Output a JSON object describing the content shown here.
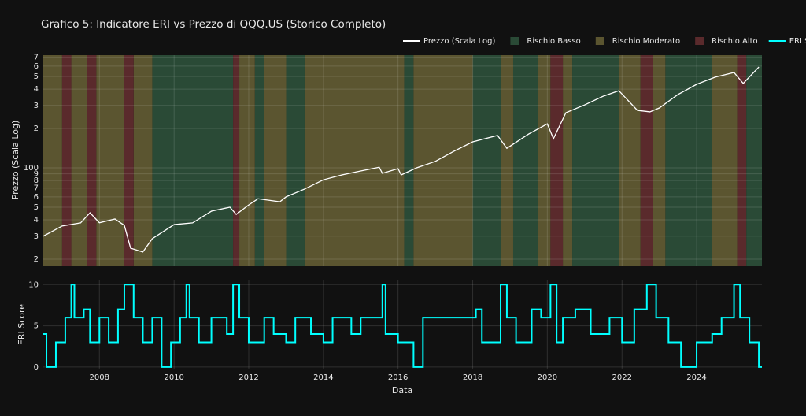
{
  "chart_data": [
    {
      "type": "line",
      "title": "Grafico 5: Indicatore ERI vs Prezzo di QQQ.US (Storico Completo)",
      "y_label": "Prezzo (Scala Log)",
      "log_y": true,
      "grid": true,
      "xlim": [
        "2006-07-01",
        "2025-10-01"
      ],
      "ylim": [
        17.9,
        727
      ],
      "yticks": [
        {
          "value": 20,
          "label": "2"
        },
        {
          "value": 30,
          "label": "3"
        },
        {
          "value": 40,
          "label": "4"
        },
        {
          "value": 50,
          "label": "5"
        },
        {
          "value": 60,
          "label": "6"
        },
        {
          "value": 70,
          "label": "7"
        },
        {
          "value": 80,
          "label": "8"
        },
        {
          "value": 90,
          "label": "9"
        },
        100,
        {
          "value": 200,
          "label": "2"
        },
        {
          "value": 300,
          "label": "3"
        },
        {
          "value": 400,
          "label": "4"
        },
        {
          "value": 500,
          "label": "5"
        },
        {
          "value": 600,
          "label": "6"
        },
        {
          "value": 700,
          "label": "7"
        }
      ],
      "regimes": [
        {
          "name": "Rischio Basso",
          "color": "#2a4a36",
          "periods": [
            [
              "2009-06",
              "2011-08"
            ],
            [
              "2012-03",
              "2012-06"
            ],
            [
              "2013-01",
              "2013-07"
            ],
            [
              "2016-03",
              "2016-06"
            ],
            [
              "2018-01",
              "2018-10"
            ],
            [
              "2019-02",
              "2019-10"
            ],
            [
              "2020-09",
              "2021-12"
            ],
            [
              "2023-03",
              "2024-06"
            ],
            [
              "2025-05",
              "2025-10"
            ]
          ]
        },
        {
          "name": "Rischio Moderato",
          "color": "#5b5530",
          "periods": [
            [
              "2006-07",
              "2007-01"
            ],
            [
              "2007-04",
              "2007-09"
            ],
            [
              "2007-12",
              "2008-09"
            ],
            [
              "2008-12",
              "2009-06"
            ],
            [
              "2011-10",
              "2012-03"
            ],
            [
              "2012-06",
              "2013-01"
            ],
            [
              "2013-07",
              "2016-03"
            ],
            [
              "2016-06",
              "2018-01"
            ],
            [
              "2018-10",
              "2019-02"
            ],
            [
              "2019-10",
              "2020-02"
            ],
            [
              "2020-06",
              "2020-09"
            ],
            [
              "2021-12",
              "2022-07"
            ],
            [
              "2022-11",
              "2023-03"
            ],
            [
              "2024-06",
              "2025-02"
            ]
          ]
        },
        {
          "name": "Rischio Alto",
          "color": "#5a2a2c",
          "periods": [
            [
              "2007-01",
              "2007-04"
            ],
            [
              "2007-09",
              "2007-12"
            ],
            [
              "2008-09",
              "2008-12"
            ],
            [
              "2011-08",
              "2011-10"
            ],
            [
              "2020-02",
              "2020-06"
            ],
            [
              "2022-07",
              "2022-11"
            ],
            [
              "2025-02",
              "2025-05"
            ]
          ]
        }
      ],
      "series": [
        {
          "name": "Prezzo (Scala Log)",
          "color": "#ffffff",
          "x": [
            "2006-07",
            "2007-01",
            "2007-07",
            "2007-10",
            "2008-01",
            "2008-06",
            "2008-09",
            "2008-11",
            "2009-03",
            "2009-06",
            "2010-01",
            "2010-07",
            "2011-01",
            "2011-07",
            "2011-09",
            "2012-01",
            "2012-04",
            "2012-11",
            "2013-01",
            "2013-07",
            "2014-01",
            "2014-07",
            "2015-01",
            "2015-07",
            "2015-08",
            "2016-01",
            "2016-02",
            "2016-07",
            "2017-01",
            "2017-07",
            "2018-01",
            "2018-09",
            "2018-12",
            "2019-07",
            "2020-01",
            "2020-03",
            "2020-07",
            "2021-01",
            "2021-07",
            "2021-12",
            "2022-06",
            "2022-10",
            "2023-01",
            "2023-07",
            "2024-01",
            "2024-07",
            "2025-01",
            "2025-04",
            "2025-09"
          ],
          "values": [
            30,
            35.9,
            37.9,
            45.3,
            38,
            40.6,
            36.3,
            24.3,
            22.7,
            28.7,
            36.8,
            37.9,
            46.6,
            50,
            44,
            52,
            58,
            55,
            60,
            68.8,
            81,
            88.3,
            94.6,
            101,
            90.7,
            98.6,
            88.3,
            100,
            112,
            134,
            158,
            177,
            141,
            181,
            217,
            167,
            264,
            303,
            353,
            389,
            275,
            268,
            287,
            363,
            435,
            494,
            536,
            442,
            590
          ]
        }
      ]
    },
    {
      "type": "step",
      "y_label": "ERI Score",
      "x_label": "Data",
      "grid": true,
      "xlim": [
        "2006-07-01",
        "2025-10-01"
      ],
      "ylim": [
        -0.2,
        10.6
      ],
      "yticks": [
        0,
        5,
        10
      ],
      "xticks": [
        {
          "value": "2008-01-01",
          "label": "2008"
        },
        {
          "value": "2010-01-01",
          "label": "2010"
        },
        {
          "value": "2012-01-01",
          "label": "2012"
        },
        {
          "value": "2014-01-01",
          "label": "2014"
        },
        {
          "value": "2016-01-01",
          "label": "2016"
        },
        {
          "value": "2018-01-01",
          "label": "2018"
        },
        {
          "value": "2020-01-01",
          "label": "2020"
        },
        {
          "value": "2022-01-01",
          "label": "2022"
        },
        {
          "value": "2024-01-01",
          "label": "2024"
        }
      ],
      "series": [
        {
          "name": "ERI Score",
          "color": "#00ffff",
          "x": [
            "2006-07",
            "2006-08",
            "2006-11",
            "2007-02",
            "2007-04",
            "2007-05",
            "2007-08",
            "2007-10",
            "2008-01",
            "2008-04",
            "2008-07",
            "2008-09",
            "2008-12",
            "2009-03",
            "2009-06",
            "2009-09",
            "2009-12",
            "2010-03",
            "2010-05",
            "2010-06",
            "2010-09",
            "2011-01",
            "2011-06",
            "2011-08",
            "2011-10",
            "2012-01",
            "2012-06",
            "2012-09",
            "2013-01",
            "2013-04",
            "2013-09",
            "2014-01",
            "2014-04",
            "2014-10",
            "2015-01",
            "2015-08",
            "2015-09",
            "2016-01",
            "2016-06",
            "2016-09",
            "2017-06",
            "2018-02",
            "2018-04",
            "2018-10",
            "2018-12",
            "2019-03",
            "2019-08",
            "2019-11",
            "2020-02",
            "2020-04",
            "2020-06",
            "2020-10",
            "2021-03",
            "2021-09",
            "2022-01",
            "2022-05",
            "2022-09",
            "2022-12",
            "2023-04",
            "2023-08",
            "2024-01",
            "2024-06",
            "2024-09",
            "2025-01",
            "2025-03",
            "2025-06",
            "2025-09"
          ],
          "values": [
            4,
            0,
            3,
            6,
            10,
            6,
            7,
            3,
            6,
            3,
            7,
            10,
            6,
            3,
            6,
            0,
            3,
            6,
            10,
            6,
            3,
            6,
            4,
            10,
            6,
            3,
            6,
            4,
            3,
            6,
            4,
            3,
            6,
            4,
            6,
            10,
            4,
            3,
            0,
            6,
            6,
            7,
            3,
            10,
            6,
            3,
            7,
            6,
            10,
            3,
            6,
            7,
            4,
            6,
            3,
            7,
            10,
            6,
            3,
            0,
            3,
            4,
            6,
            10,
            6,
            3,
            0
          ]
        }
      ]
    }
  ]
}
